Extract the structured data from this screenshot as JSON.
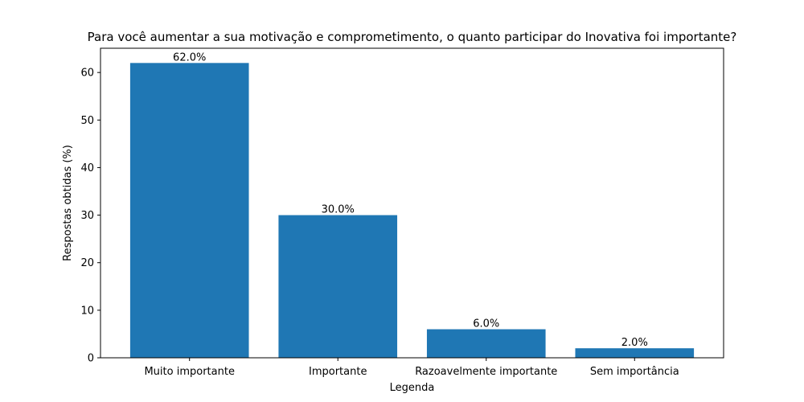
{
  "chart_data": {
    "type": "bar",
    "title": "Para você aumentar a sua motivação e comprometimento, o quanto participar do Inovativa foi importante?",
    "xlabel": "Legenda",
    "ylabel": "Respostas obtidas (%)",
    "categories": [
      "Muito importante",
      "Importante",
      "Razoavelmente importante",
      "Sem importância"
    ],
    "values": [
      62.0,
      30.0,
      6.0,
      2.0
    ],
    "data_labels": [
      "62.0%",
      "30.0%",
      "6.0%",
      "2.0%"
    ],
    "yticks": [
      0,
      10,
      20,
      30,
      40,
      50,
      60
    ],
    "ylim": [
      0,
      65.1
    ],
    "grid": false,
    "bar_color": "#1f77b4"
  }
}
